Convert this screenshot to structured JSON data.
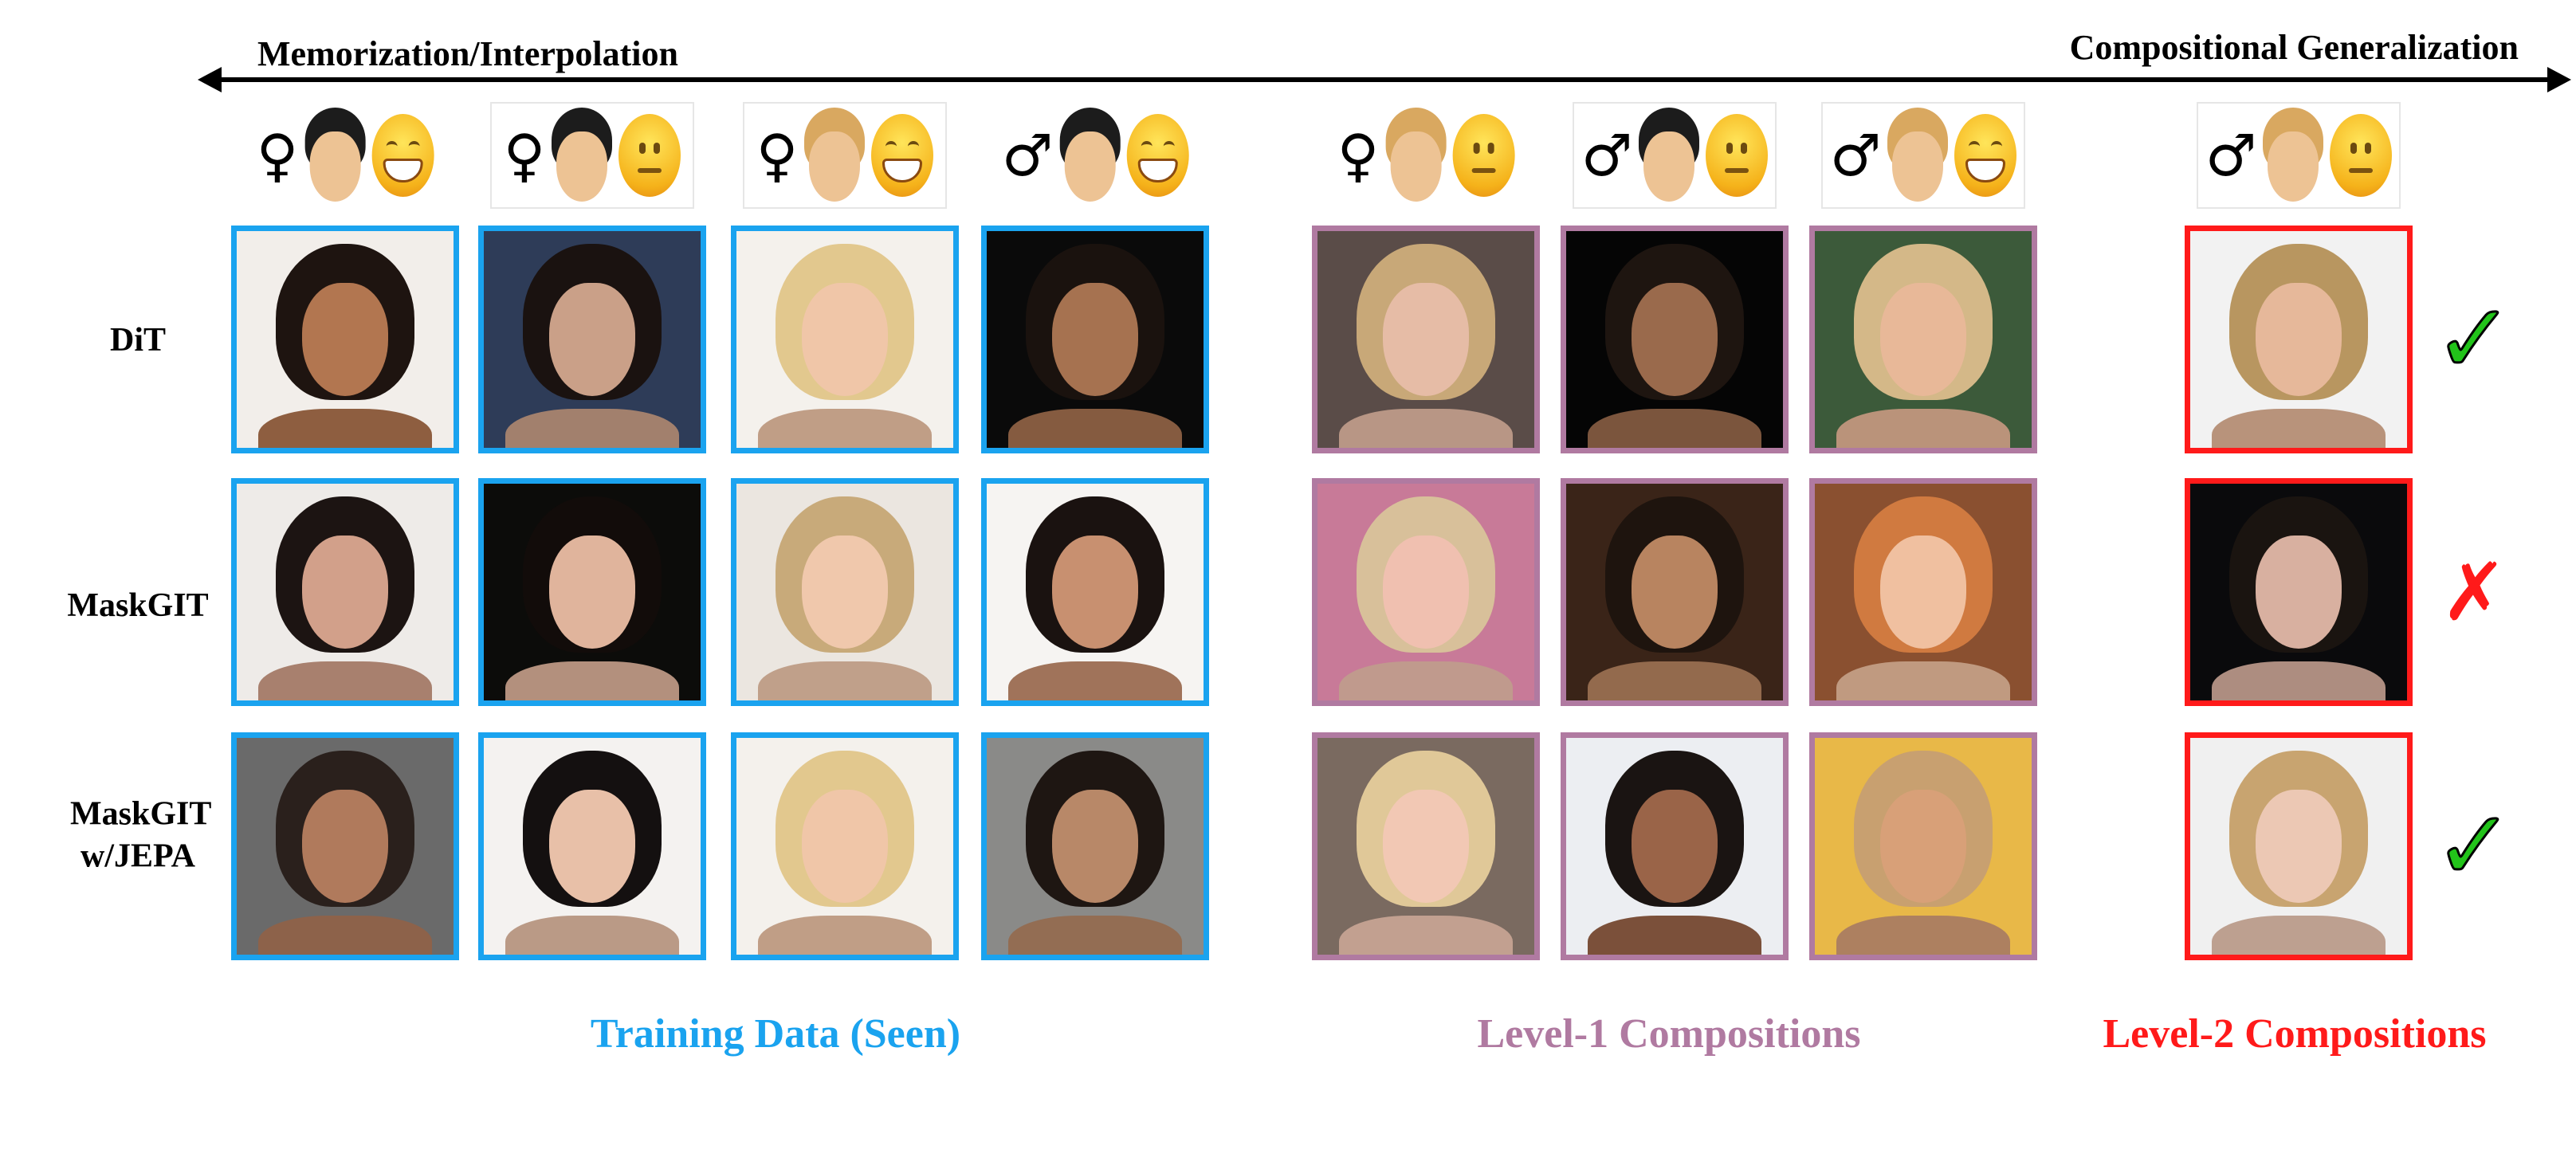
{
  "axis": {
    "left_label": "Memorization/Interpolation",
    "right_label": "Compositional Generalization"
  },
  "colors": {
    "training": "#1aa3ef",
    "level1": "#b07aa1",
    "level2": "#ff1a1a",
    "check": "#22c31a",
    "cross": "#ff1a1a"
  },
  "groups": [
    {
      "label": "Training Data (Seen)",
      "color_key": "training"
    },
    {
      "label": "Level-1 Compositions",
      "color_key": "level1"
    },
    {
      "label": "Level-2 Compositions",
      "color_key": "level2"
    }
  ],
  "conditions": [
    {
      "group": 0,
      "gender": "♀",
      "hair": "black",
      "expression": "smiling",
      "boxed": false
    },
    {
      "group": 0,
      "gender": "♀",
      "hair": "black",
      "expression": "neutral",
      "boxed": true
    },
    {
      "group": 0,
      "gender": "♀",
      "hair": "blond",
      "expression": "smiling",
      "boxed": true
    },
    {
      "group": 0,
      "gender": "♂",
      "hair": "black",
      "expression": "smiling",
      "boxed": false
    },
    {
      "group": 1,
      "gender": "♀",
      "hair": "blond",
      "expression": "neutral",
      "boxed": false
    },
    {
      "group": 1,
      "gender": "♂",
      "hair": "black",
      "expression": "neutral",
      "boxed": true
    },
    {
      "group": 1,
      "gender": "♂",
      "hair": "blond",
      "expression": "smiling",
      "boxed": true
    },
    {
      "group": 2,
      "gender": "♂",
      "hair": "blond",
      "expression": "neutral",
      "boxed": true
    }
  ],
  "rows": [
    {
      "label": "DiT",
      "result": "check",
      "result_glyph": "✓",
      "tiles": [
        {
          "bg": "#f2eeea",
          "hair": "#1e1410",
          "skin": "#b27650"
        },
        {
          "bg": "#2e3c58",
          "hair": "#1a1210",
          "skin": "#caa088"
        },
        {
          "bg": "#f4f1ec",
          "hair": "#e2c88e",
          "skin": "#f0c6a8"
        },
        {
          "bg": "#0a0a0a",
          "hair": "#1a120e",
          "skin": "#a67250"
        },
        {
          "bg": "#5a4c48",
          "hair": "#c8a878",
          "skin": "#e6bca6"
        },
        {
          "bg": "#050505",
          "hair": "#1e1510",
          "skin": "#9a6a4c"
        },
        {
          "bg": "#3c5a3a",
          "hair": "#d4b888",
          "skin": "#e8b898"
        },
        {
          "bg": "#f2f2f2",
          "hair": "#b89660",
          "skin": "#e6b89a"
        }
      ]
    },
    {
      "label": "MaskGIT",
      "result": "cross",
      "result_glyph": "✗",
      "tiles": [
        {
          "bg": "#eeebe8",
          "hair": "#1c1412",
          "skin": "#d2a08a"
        },
        {
          "bg": "#0c0c0a",
          "hair": "#120c0a",
          "skin": "#e0b49c"
        },
        {
          "bg": "#ebe6e0",
          "hair": "#c8aa7a",
          "skin": "#f0c8ac"
        },
        {
          "bg": "#f6f4f2",
          "hair": "#1a1210",
          "skin": "#c89070"
        },
        {
          "bg": "#c87a98",
          "hair": "#d8c09a",
          "skin": "#f0c0b0"
        },
        {
          "bg": "#3a2418",
          "hair": "#1e140e",
          "skin": "#b88460"
        },
        {
          "bg": "#8a5030",
          "hair": "#d07a40",
          "skin": "#f0c0a0"
        },
        {
          "bg": "#0a0a0c",
          "hair": "#1a1410",
          "skin": "#d8b0a0"
        }
      ]
    },
    {
      "label": "MaskGIT w/JEPA",
      "result": "check",
      "result_glyph": "✓",
      "tiles": [
        {
          "bg": "#6a6a6a",
          "hair": "#2a201c",
          "skin": "#b07a5c"
        },
        {
          "bg": "#f4f2f0",
          "hair": "#141010",
          "skin": "#e8c0a8"
        },
        {
          "bg": "#f4f1ec",
          "hair": "#e2c88e",
          "skin": "#f0c6a8"
        },
        {
          "bg": "#8a8a88",
          "hair": "#1e1612",
          "skin": "#b88868"
        },
        {
          "bg": "#7a6a60",
          "hair": "#e0c898",
          "skin": "#f2c8b4"
        },
        {
          "bg": "#eceef2",
          "hair": "#1a1412",
          "skin": "#9a6448"
        },
        {
          "bg": "#e8b848",
          "hair": "#c8a070",
          "skin": "#d8a078"
        },
        {
          "bg": "#f0f0f0",
          "hair": "#c8a470",
          "skin": "#ecc8b4"
        }
      ]
    }
  ]
}
